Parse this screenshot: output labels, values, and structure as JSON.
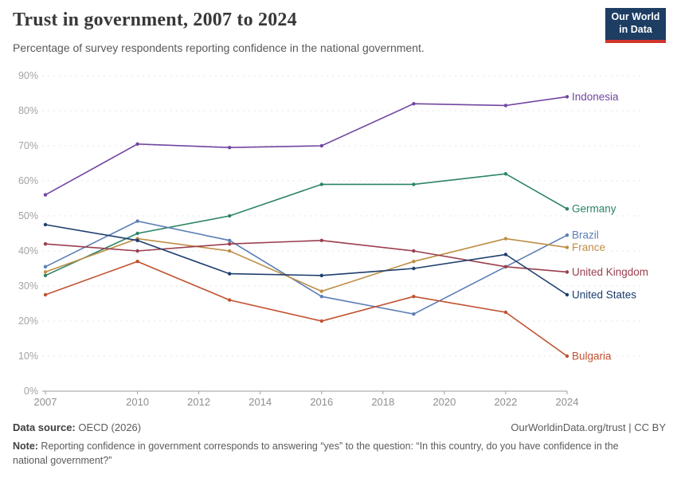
{
  "header": {
    "title": "Trust in government, 2007 to 2024",
    "subtitle": "Percentage of survey respondents reporting confidence in the national government.",
    "logo_line1": "Our World",
    "logo_line2": "in Data"
  },
  "chart_data": {
    "type": "line",
    "title": "Trust in government, 2007 to 2024",
    "xlabel": "",
    "ylabel": "",
    "x": [
      2007,
      2010,
      2013,
      2016,
      2019,
      2022,
      2024
    ],
    "series": [
      {
        "name": "Indonesia",
        "color": "#7147a0",
        "values": [
          56,
          70.5,
          69.5,
          70,
          82,
          81.5,
          84
        ]
      },
      {
        "name": "Germany",
        "color": "#2c8465",
        "values": [
          33,
          45,
          50,
          59,
          59,
          62,
          52
        ]
      },
      {
        "name": "Brazil",
        "color": "#5b7fb5",
        "values": [
          35.5,
          48.5,
          43,
          27,
          22,
          null,
          44.5
        ]
      },
      {
        "name": "France",
        "color": "#be8e46",
        "values": [
          34,
          43.5,
          40,
          28.5,
          37,
          43.5,
          41
        ]
      },
      {
        "name": "United Kingdom",
        "color": "#9a3e4e",
        "values": [
          42,
          40,
          42,
          43,
          40,
          35.5,
          34
        ]
      },
      {
        "name": "United States",
        "color": "#1d3d6d",
        "values": [
          47.5,
          43,
          33.5,
          33,
          35,
          39,
          27.5
        ]
      },
      {
        "name": "Bulgaria",
        "color": "#c0512f",
        "values": [
          27.5,
          37,
          26,
          20,
          27,
          22.5,
          10
        ]
      }
    ],
    "ylim": [
      0,
      90
    ],
    "ytick_step": 10,
    "ytick_suffix": "%",
    "xticks": [
      2007,
      2010,
      2012,
      2014,
      2016,
      2018,
      2020,
      2022,
      2024
    ],
    "grid": true,
    "legend_position": "right-end-labels"
  },
  "footer": {
    "datasource_label": "Data source:",
    "datasource_value": " OECD (2026)",
    "link": "OurWorldinData.org/trust | CC BY",
    "note_label": "Note:",
    "note_text": " Reporting confidence in government corresponds to answering “yes” to the question: “In this country, do you have confidence in the national government?”"
  }
}
